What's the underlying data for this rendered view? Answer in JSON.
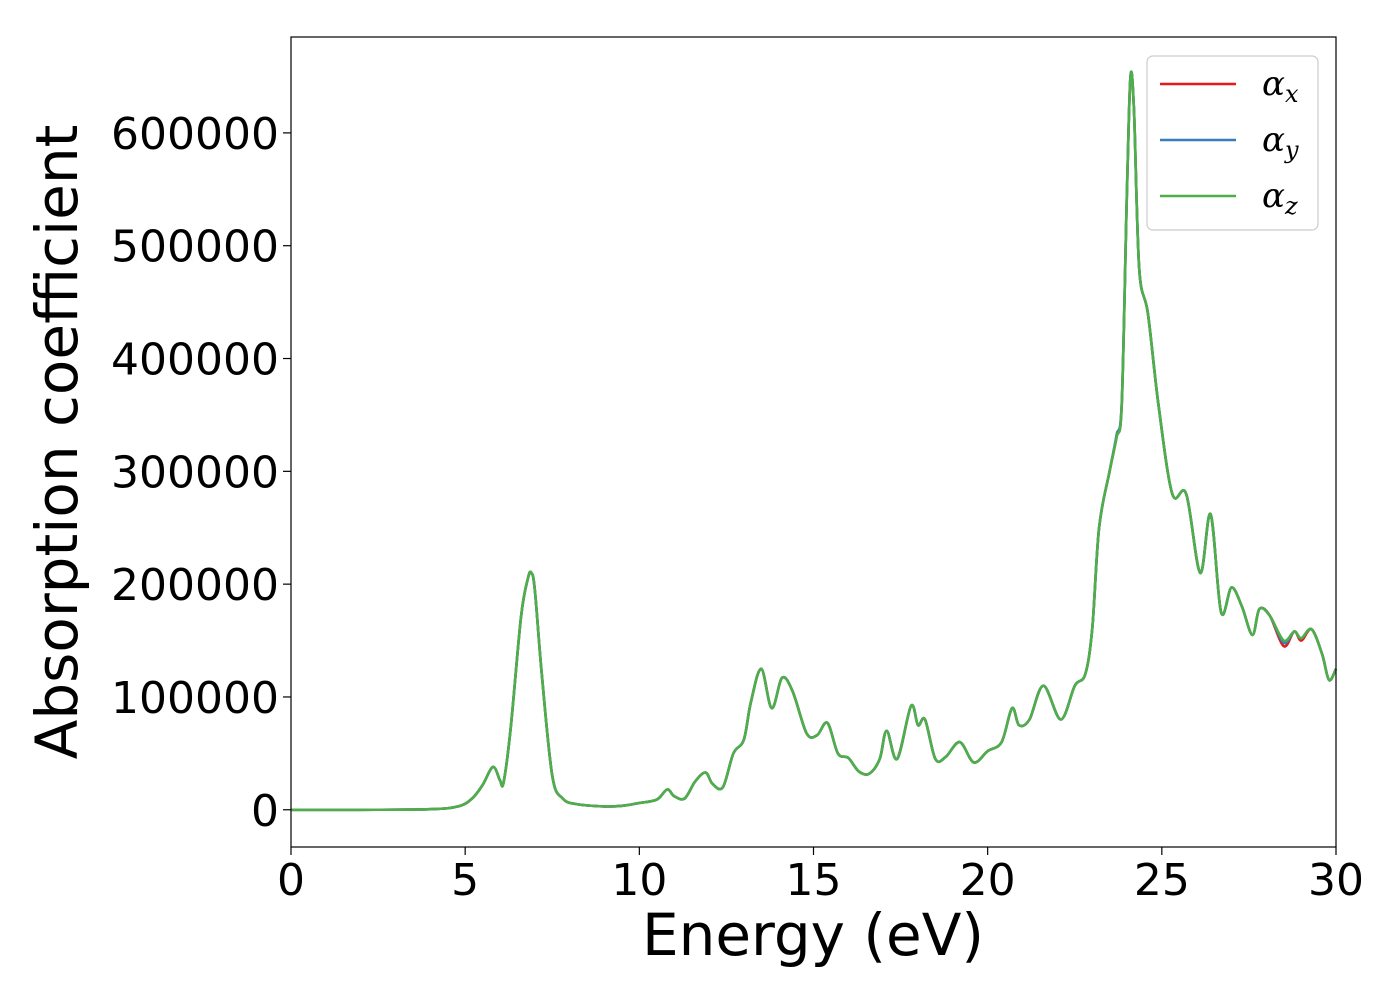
{
  "chart_data": {
    "type": "line",
    "title": "",
    "xlabel": "Energy (eV)",
    "ylabel": "Absorption coefficient",
    "xlim": [
      0,
      30
    ],
    "ylim": [
      -33000,
      685000
    ],
    "xticks": [
      0,
      5,
      10,
      15,
      20,
      25,
      30
    ],
    "yticks": [
      0,
      100000,
      200000,
      300000,
      400000,
      500000,
      600000
    ],
    "grid": false,
    "legend_position": "top-right",
    "colors": {
      "x": "#e41a1c",
      "y": "#377eb8",
      "z": "#4daf4a"
    },
    "series": [
      {
        "name": "αx",
        "legend_base": "α",
        "legend_sub": "x",
        "color": "#e41a1c",
        "x": [
          0,
          2,
          4,
          4.8,
          5.2,
          5.5,
          5.8,
          6.0,
          6.1,
          6.3,
          6.6,
          6.8,
          6.9,
          7.0,
          7.2,
          7.5,
          7.8,
          8.2,
          9.0,
          9.5,
          10.0,
          10.5,
          10.8,
          11.0,
          11.3,
          11.6,
          11.9,
          12.1,
          12.4,
          12.7,
          13.0,
          13.2,
          13.5,
          13.8,
          14.1,
          14.4,
          14.8,
          15.1,
          15.4,
          15.7,
          16.0,
          16.3,
          16.6,
          16.9,
          17.1,
          17.4,
          17.8,
          18.0,
          18.2,
          18.5,
          18.8,
          19.2,
          19.6,
          20.0,
          20.4,
          20.7,
          20.9,
          21.2,
          21.6,
          22.1,
          22.5,
          22.8,
          23.0,
          23.2,
          23.5,
          23.7,
          23.85,
          24.0,
          24.1,
          24.2,
          24.35,
          24.6,
          24.9,
          25.3,
          25.7,
          26.1,
          26.4,
          26.7,
          27.0,
          27.3,
          27.6,
          27.8,
          28.1,
          28.5,
          28.8,
          29.0,
          29.3,
          29.6,
          29.8,
          30.0
        ],
        "y": [
          0,
          0,
          500,
          3000,
          10000,
          22000,
          38000,
          26000,
          24000,
          70000,
          170000,
          205000,
          210000,
          195000,
          120000,
          30000,
          10000,
          5000,
          3000,
          3500,
          6000,
          9000,
          18000,
          12000,
          10000,
          25000,
          33000,
          23000,
          20000,
          50000,
          62000,
          95000,
          125000,
          90000,
          117000,
          105000,
          68000,
          66000,
          77000,
          50000,
          46000,
          34000,
          32000,
          45000,
          70000,
          45000,
          92000,
          75000,
          80000,
          45000,
          47000,
          60000,
          42000,
          52000,
          60000,
          90000,
          75000,
          80000,
          110000,
          80000,
          110000,
          120000,
          160000,
          250000,
          300000,
          330000,
          360000,
          550000,
          650000,
          620000,
          480000,
          440000,
          360000,
          280000,
          280000,
          210000,
          262000,
          175000,
          197000,
          180000,
          155000,
          178000,
          172000,
          145000,
          158000,
          150000,
          160000,
          138000,
          115000,
          125000
        ]
      },
      {
        "name": "αy",
        "legend_base": "α",
        "legend_sub": "y",
        "color": "#377eb8",
        "x": [
          0,
          2,
          4,
          4.8,
          5.2,
          5.5,
          5.8,
          6.0,
          6.1,
          6.3,
          6.6,
          6.8,
          6.9,
          7.0,
          7.2,
          7.5,
          7.8,
          8.2,
          9.0,
          9.5,
          10.0,
          10.5,
          10.8,
          11.0,
          11.3,
          11.6,
          11.9,
          12.1,
          12.4,
          12.7,
          13.0,
          13.2,
          13.5,
          13.8,
          14.1,
          14.4,
          14.8,
          15.1,
          15.4,
          15.7,
          16.0,
          16.3,
          16.6,
          16.9,
          17.1,
          17.4,
          17.8,
          18.0,
          18.2,
          18.5,
          18.8,
          19.2,
          19.6,
          20.0,
          20.4,
          20.7,
          20.9,
          21.2,
          21.6,
          22.1,
          22.5,
          22.8,
          23.0,
          23.2,
          23.5,
          23.7,
          23.85,
          24.0,
          24.1,
          24.2,
          24.35,
          24.6,
          24.9,
          25.3,
          25.7,
          26.1,
          26.4,
          26.7,
          27.0,
          27.3,
          27.6,
          27.8,
          28.1,
          28.5,
          28.8,
          29.0,
          29.3,
          29.6,
          29.8,
          30.0
        ],
        "y": [
          0,
          0,
          500,
          3000,
          10000,
          22000,
          38000,
          26000,
          24000,
          70000,
          170000,
          205000,
          210000,
          195000,
          120000,
          30000,
          10000,
          5000,
          3000,
          3500,
          6000,
          9000,
          18000,
          12000,
          10000,
          25000,
          33000,
          23000,
          20000,
          50000,
          62000,
          95000,
          125000,
          90000,
          117000,
          105000,
          68000,
          66000,
          77000,
          50000,
          46000,
          34000,
          32000,
          45000,
          70000,
          45000,
          92000,
          75000,
          80000,
          45000,
          47000,
          60000,
          42000,
          52000,
          60000,
          90000,
          75000,
          80000,
          110000,
          80000,
          110000,
          120000,
          160000,
          250000,
          300000,
          332000,
          362000,
          550000,
          650000,
          620000,
          480000,
          440000,
          360000,
          280000,
          280000,
          210000,
          262000,
          175000,
          197000,
          180000,
          155000,
          178000,
          172000,
          148000,
          158000,
          152000,
          160000,
          138000,
          115000,
          125000
        ]
      },
      {
        "name": "αz",
        "legend_base": "α",
        "legend_sub": "z",
        "color": "#4daf4a",
        "x": [
          0,
          2,
          4,
          4.8,
          5.2,
          5.5,
          5.8,
          6.0,
          6.1,
          6.3,
          6.6,
          6.8,
          6.9,
          7.0,
          7.2,
          7.5,
          7.8,
          8.2,
          9.0,
          9.5,
          10.0,
          10.5,
          10.8,
          11.0,
          11.3,
          11.6,
          11.9,
          12.1,
          12.4,
          12.7,
          13.0,
          13.2,
          13.5,
          13.8,
          14.1,
          14.4,
          14.8,
          15.1,
          15.4,
          15.7,
          16.0,
          16.3,
          16.6,
          16.9,
          17.1,
          17.4,
          17.8,
          18.0,
          18.2,
          18.5,
          18.8,
          19.2,
          19.6,
          20.0,
          20.4,
          20.7,
          20.9,
          21.2,
          21.6,
          22.1,
          22.5,
          22.8,
          23.0,
          23.2,
          23.5,
          23.7,
          23.85,
          24.0,
          24.1,
          24.2,
          24.35,
          24.6,
          24.9,
          25.3,
          25.7,
          26.1,
          26.4,
          26.7,
          27.0,
          27.3,
          27.6,
          27.8,
          28.1,
          28.5,
          28.8,
          29.0,
          29.3,
          29.6,
          29.8,
          30.0
        ],
        "y": [
          0,
          0,
          500,
          3000,
          10000,
          22000,
          38000,
          26000,
          24000,
          70000,
          170000,
          205000,
          210000,
          195000,
          120000,
          30000,
          10000,
          5000,
          3000,
          3500,
          6000,
          9000,
          18000,
          12000,
          10000,
          25000,
          33000,
          23000,
          20000,
          50000,
          62000,
          95000,
          125000,
          90000,
          117000,
          105000,
          68000,
          66000,
          77000,
          50000,
          46000,
          34000,
          32000,
          45000,
          70000,
          45000,
          92000,
          75000,
          80000,
          45000,
          47000,
          60000,
          42000,
          52000,
          60000,
          90000,
          75000,
          80000,
          110000,
          80000,
          110000,
          120000,
          160000,
          250000,
          300000,
          330000,
          360000,
          550000,
          650000,
          620000,
          480000,
          440000,
          360000,
          280000,
          280000,
          210000,
          262000,
          175000,
          197000,
          180000,
          155000,
          178000,
          172000,
          150000,
          158000,
          152000,
          160000,
          138000,
          115000,
          125000
        ]
      }
    ]
  }
}
